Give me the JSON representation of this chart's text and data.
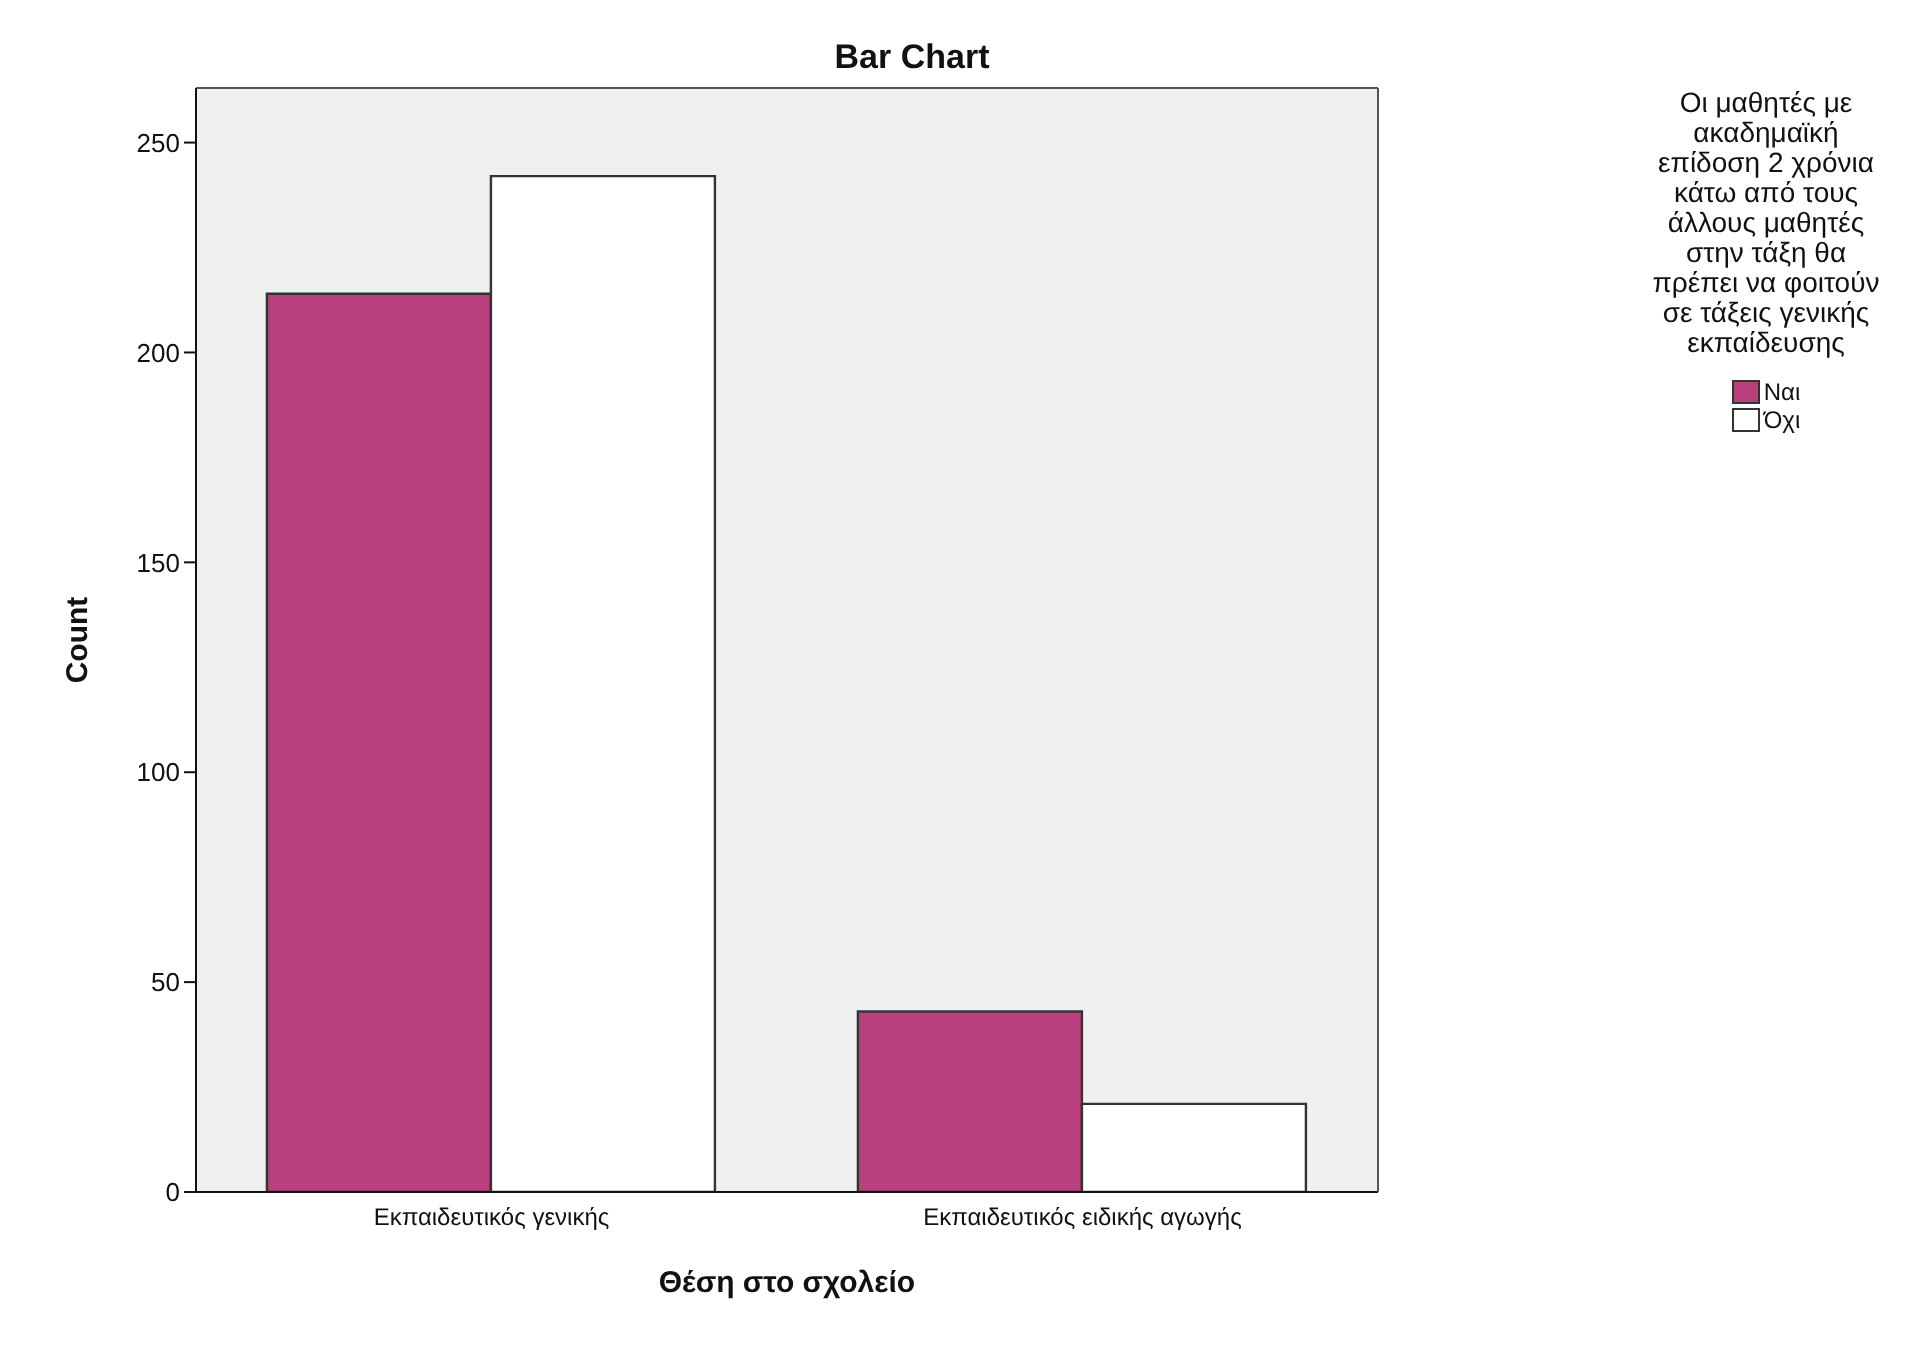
{
  "chart_data": {
    "type": "bar",
    "title": "Bar Chart",
    "xlabel": "Θέση στο σχολείο",
    "ylabel": "Count",
    "legend_title": "Οι μαθητές με ακαδημαϊκή επίδοση 2 χρόνια κάτω από τους άλλους μαθητές στην τάξη θα πρέπει να φοιτούν σε τάξεις γενικής εκπαίδευσης",
    "categories": [
      "Εκπαιδευτικός γενικής",
      "Εκπαιδευτικός ειδικής αγωγής"
    ],
    "series": [
      {
        "name": "Ναι",
        "color": "#b9407c",
        "values": [
          214,
          43
        ]
      },
      {
        "name": "Όχι",
        "color": "#ffffff",
        "values": [
          242,
          21
        ]
      }
    ],
    "ylim": [
      0,
      263
    ],
    "yticks": [
      0,
      50,
      100,
      150,
      200,
      250
    ],
    "grid": false,
    "legend": "right"
  }
}
